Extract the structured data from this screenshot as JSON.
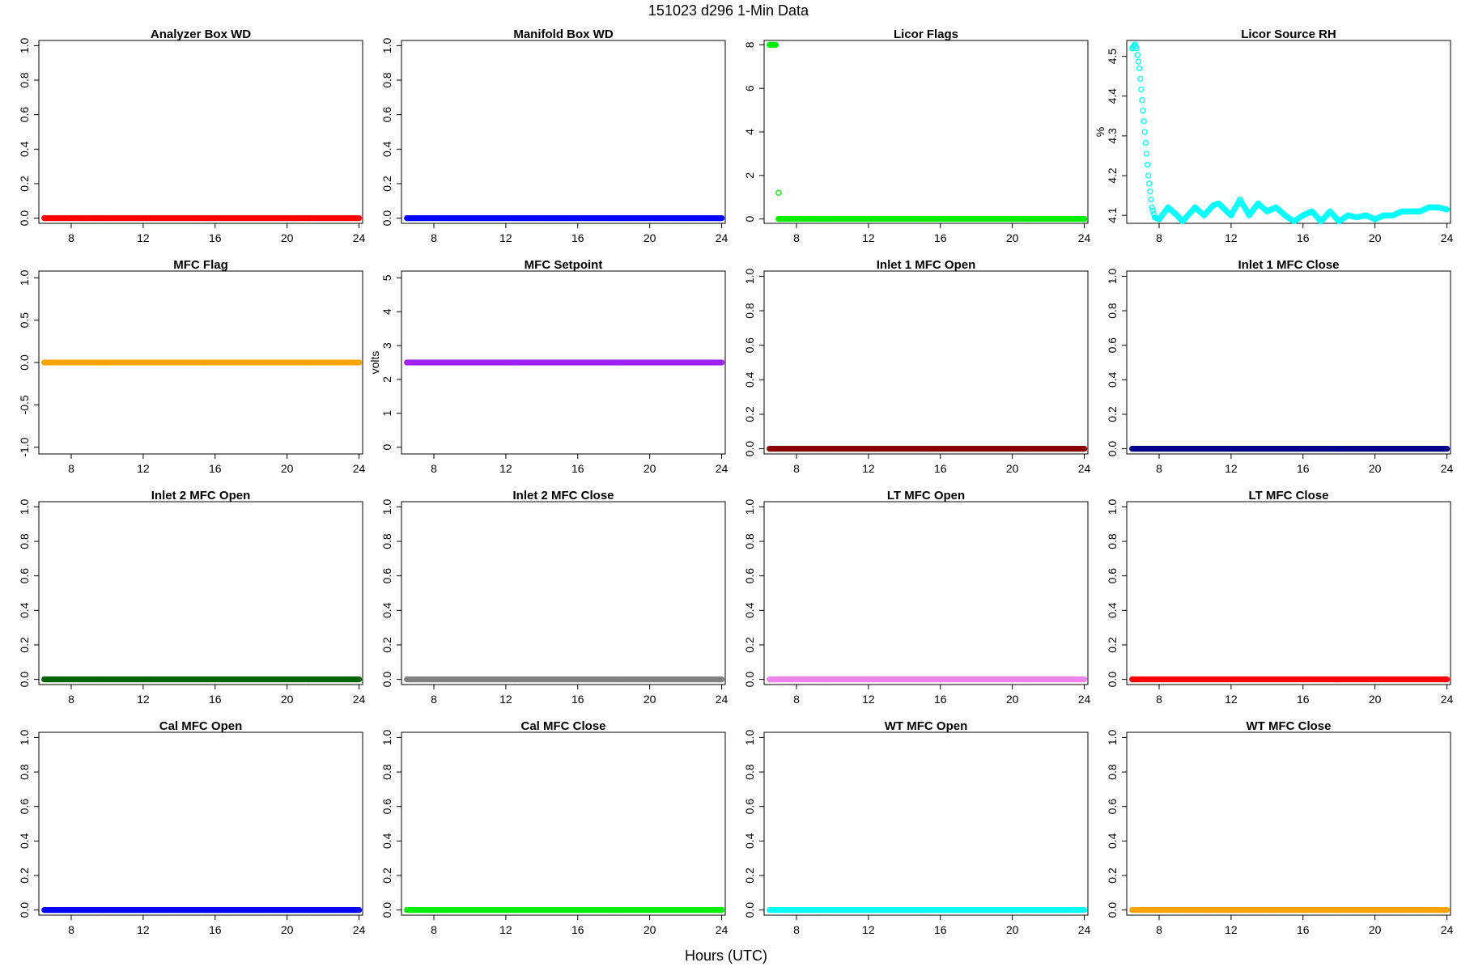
{
  "figure": {
    "title": "151023   d296   1-Min Data",
    "xlabel": "Hours (UTC)"
  },
  "chart_data": [
    {
      "type": "scatter",
      "title": "Analyzer Box WD",
      "xlabel": "",
      "ylabel": "",
      "xlim": [
        6.2,
        24.2
      ],
      "xticks": [
        "8",
        "12",
        "16",
        "20",
        "24"
      ],
      "ylim": [
        -0.03,
        1.03
      ],
      "yticks": [
        "0.0",
        "0.2",
        "0.4",
        "0.6",
        "0.8",
        "1.0"
      ],
      "color": "#ff0000",
      "series": [
        {
          "x_range": [
            6.5,
            24.0
          ],
          "y": 0
        }
      ]
    },
    {
      "type": "scatter",
      "title": "Manifold Box WD",
      "xlabel": "",
      "ylabel": "",
      "xlim": [
        6.2,
        24.2
      ],
      "xticks": [
        "8",
        "12",
        "16",
        "20",
        "24"
      ],
      "ylim": [
        -0.03,
        1.03
      ],
      "yticks": [
        "0.0",
        "0.2",
        "0.4",
        "0.6",
        "0.8",
        "1.0"
      ],
      "color": "#0000ff",
      "series": [
        {
          "x_range": [
            6.5,
            24.0
          ],
          "y": 0
        }
      ]
    },
    {
      "type": "scatter",
      "title": "Licor Flags",
      "xlabel": "",
      "ylabel": "",
      "xlim": [
        6.2,
        24.2
      ],
      "xticks": [
        "8",
        "12",
        "16",
        "20",
        "24"
      ],
      "ylim": [
        -0.2,
        8.2
      ],
      "yticks": [
        "0",
        "2",
        "4",
        "6",
        "8"
      ],
      "color": "#00ee00",
      "series": [
        {
          "x_range": [
            6.5,
            6.85
          ],
          "y": 8
        },
        {
          "points": [
            [
              7.0,
              1.2
            ]
          ]
        },
        {
          "x_range": [
            7.0,
            24.0
          ],
          "y": 0
        }
      ]
    },
    {
      "type": "scatter",
      "title": "Licor Source RH",
      "xlabel": "",
      "ylabel": "%",
      "xlim": [
        6.2,
        24.2
      ],
      "xticks": [
        "8",
        "12",
        "16",
        "20",
        "24"
      ],
      "ylim": [
        4.08,
        4.54
      ],
      "yticks": [
        "4.1",
        "4.2",
        "4.3",
        "4.4",
        "4.5"
      ],
      "color": "#00ffff",
      "series": [
        {
          "points": [
            [
              6.5,
              4.52
            ],
            [
              6.65,
              4.53
            ],
            [
              6.75,
              4.52
            ],
            [
              6.9,
              4.47
            ],
            [
              7.05,
              4.39
            ],
            [
              7.2,
              4.31
            ],
            [
              7.4,
              4.2
            ],
            [
              7.6,
              4.12
            ],
            [
              7.75,
              4.095
            ],
            [
              8.0,
              4.09
            ],
            [
              8.5,
              4.12
            ],
            [
              9.0,
              4.1
            ],
            [
              9.3,
              4.085
            ],
            [
              9.6,
              4.1
            ],
            [
              10.0,
              4.12
            ],
            [
              10.5,
              4.1
            ],
            [
              11.0,
              4.125
            ],
            [
              11.3,
              4.13
            ],
            [
              12.0,
              4.1
            ],
            [
              12.5,
              4.14
            ],
            [
              13.0,
              4.1
            ],
            [
              13.5,
              4.13
            ],
            [
              14.0,
              4.11
            ],
            [
              14.5,
              4.12
            ],
            [
              15.0,
              4.1
            ],
            [
              15.5,
              4.085
            ],
            [
              16.0,
              4.1
            ],
            [
              16.5,
              4.11
            ],
            [
              17.0,
              4.085
            ],
            [
              17.5,
              4.11
            ],
            [
              18.0,
              4.085
            ],
            [
              18.5,
              4.1
            ],
            [
              19.0,
              4.095
            ],
            [
              19.5,
              4.1
            ],
            [
              20.0,
              4.09
            ],
            [
              20.5,
              4.1
            ],
            [
              21.0,
              4.1
            ],
            [
              21.5,
              4.11
            ],
            [
              22.0,
              4.11
            ],
            [
              22.5,
              4.11
            ],
            [
              23.0,
              4.12
            ],
            [
              23.5,
              4.12
            ],
            [
              24.0,
              4.115
            ]
          ]
        }
      ]
    },
    {
      "type": "scatter",
      "title": "MFC Flag",
      "xlabel": "",
      "ylabel": "",
      "xlim": [
        6.2,
        24.2
      ],
      "xticks": [
        "8",
        "12",
        "16",
        "20",
        "24"
      ],
      "ylim": [
        -1.08,
        1.08
      ],
      "yticks": [
        "-1.0",
        "-0.5",
        "0.0",
        "0.5",
        "1.0"
      ],
      "color": "#ffa500",
      "series": [
        {
          "x_range": [
            6.5,
            24.0
          ],
          "y": 0
        }
      ]
    },
    {
      "type": "scatter",
      "title": "MFC Setpoint",
      "xlabel": "",
      "ylabel": "volts",
      "xlim": [
        6.2,
        24.2
      ],
      "xticks": [
        "8",
        "12",
        "16",
        "20",
        "24"
      ],
      "ylim": [
        -0.2,
        5.2
      ],
      "yticks": [
        "0",
        "1",
        "2",
        "3",
        "4",
        "5"
      ],
      "color": "#a020f0",
      "series": [
        {
          "x_range": [
            6.5,
            24.0
          ],
          "y": 2.5
        }
      ]
    },
    {
      "type": "scatter",
      "title": "Inlet 1 MFC Open",
      "xlabel": "",
      "ylabel": "",
      "xlim": [
        6.2,
        24.2
      ],
      "xticks": [
        "8",
        "12",
        "16",
        "20",
        "24"
      ],
      "ylim": [
        -0.03,
        1.03
      ],
      "yticks": [
        "0.0",
        "0.2",
        "0.4",
        "0.6",
        "0.8",
        "1.0"
      ],
      "color": "#8b0000",
      "series": [
        {
          "x_range": [
            6.5,
            24.0
          ],
          "y": 0
        }
      ]
    },
    {
      "type": "scatter",
      "title": "Inlet 1 MFC Close",
      "xlabel": "",
      "ylabel": "",
      "xlim": [
        6.2,
        24.2
      ],
      "xticks": [
        "8",
        "12",
        "16",
        "20",
        "24"
      ],
      "ylim": [
        -0.03,
        1.03
      ],
      "yticks": [
        "0.0",
        "0.2",
        "0.4",
        "0.6",
        "0.8",
        "1.0"
      ],
      "color": "#00008b",
      "series": [
        {
          "x_range": [
            6.5,
            24.0
          ],
          "y": 0
        }
      ]
    },
    {
      "type": "scatter",
      "title": "Inlet 2 MFC Open",
      "xlabel": "",
      "ylabel": "",
      "xlim": [
        6.2,
        24.2
      ],
      "xticks": [
        "8",
        "12",
        "16",
        "20",
        "24"
      ],
      "ylim": [
        -0.03,
        1.03
      ],
      "yticks": [
        "0.0",
        "0.2",
        "0.4",
        "0.6",
        "0.8",
        "1.0"
      ],
      "color": "#006400",
      "series": [
        {
          "x_range": [
            6.5,
            24.0
          ],
          "y": 0
        }
      ]
    },
    {
      "type": "scatter",
      "title": "Inlet 2 MFC Close",
      "xlabel": "",
      "ylabel": "",
      "xlim": [
        6.2,
        24.2
      ],
      "xticks": [
        "8",
        "12",
        "16",
        "20",
        "24"
      ],
      "ylim": [
        -0.03,
        1.03
      ],
      "yticks": [
        "0.0",
        "0.2",
        "0.4",
        "0.6",
        "0.8",
        "1.0"
      ],
      "color": "#808080",
      "series": [
        {
          "x_range": [
            6.5,
            24.0
          ],
          "y": 0
        }
      ]
    },
    {
      "type": "scatter",
      "title": "LT MFC Open",
      "xlabel": "",
      "ylabel": "",
      "xlim": [
        6.2,
        24.2
      ],
      "xticks": [
        "8",
        "12",
        "16",
        "20",
        "24"
      ],
      "ylim": [
        -0.03,
        1.03
      ],
      "yticks": [
        "0.0",
        "0.2",
        "0.4",
        "0.6",
        "0.8",
        "1.0"
      ],
      "color": "#ee82ee",
      "series": [
        {
          "x_range": [
            6.5,
            24.0
          ],
          "y": 0
        }
      ]
    },
    {
      "type": "scatter",
      "title": "LT MFC Close",
      "xlabel": "",
      "ylabel": "",
      "xlim": [
        6.2,
        24.2
      ],
      "xticks": [
        "8",
        "12",
        "16",
        "20",
        "24"
      ],
      "ylim": [
        -0.03,
        1.03
      ],
      "yticks": [
        "0.0",
        "0.2",
        "0.4",
        "0.6",
        "0.8",
        "1.0"
      ],
      "color": "#ff0000",
      "series": [
        {
          "x_range": [
            6.5,
            24.0
          ],
          "y": 0
        }
      ]
    },
    {
      "type": "scatter",
      "title": "Cal MFC Open",
      "xlabel": "",
      "ylabel": "",
      "xlim": [
        6.2,
        24.2
      ],
      "xticks": [
        "8",
        "12",
        "16",
        "20",
        "24"
      ],
      "ylim": [
        -0.03,
        1.03
      ],
      "yticks": [
        "0.0",
        "0.2",
        "0.4",
        "0.6",
        "0.8",
        "1.0"
      ],
      "color": "#0000ff",
      "series": [
        {
          "x_range": [
            6.5,
            24.0
          ],
          "y": 0
        }
      ]
    },
    {
      "type": "scatter",
      "title": "Cal MFC Close",
      "xlabel": "",
      "ylabel": "",
      "xlim": [
        6.2,
        24.2
      ],
      "xticks": [
        "8",
        "12",
        "16",
        "20",
        "24"
      ],
      "ylim": [
        -0.03,
        1.03
      ],
      "yticks": [
        "0.0",
        "0.2",
        "0.4",
        "0.6",
        "0.8",
        "1.0"
      ],
      "color": "#00ee00",
      "series": [
        {
          "x_range": [
            6.5,
            24.0
          ],
          "y": 0
        }
      ]
    },
    {
      "type": "scatter",
      "title": "WT MFC Open",
      "xlabel": "",
      "ylabel": "",
      "xlim": [
        6.2,
        24.2
      ],
      "xticks": [
        "8",
        "12",
        "16",
        "20",
        "24"
      ],
      "ylim": [
        -0.03,
        1.03
      ],
      "yticks": [
        "0.0",
        "0.2",
        "0.4",
        "0.6",
        "0.8",
        "1.0"
      ],
      "color": "#00ffff",
      "series": [
        {
          "x_range": [
            6.5,
            24.0
          ],
          "y": 0
        }
      ]
    },
    {
      "type": "scatter",
      "title": "WT MFC Close",
      "xlabel": "",
      "ylabel": "",
      "xlim": [
        6.2,
        24.2
      ],
      "xticks": [
        "8",
        "12",
        "16",
        "20",
        "24"
      ],
      "ylim": [
        -0.03,
        1.03
      ],
      "yticks": [
        "0.0",
        "0.2",
        "0.4",
        "0.6",
        "0.8",
        "1.0"
      ],
      "color": "#ffa500",
      "series": [
        {
          "x_range": [
            6.5,
            24.0
          ],
          "y": 0
        }
      ]
    }
  ]
}
